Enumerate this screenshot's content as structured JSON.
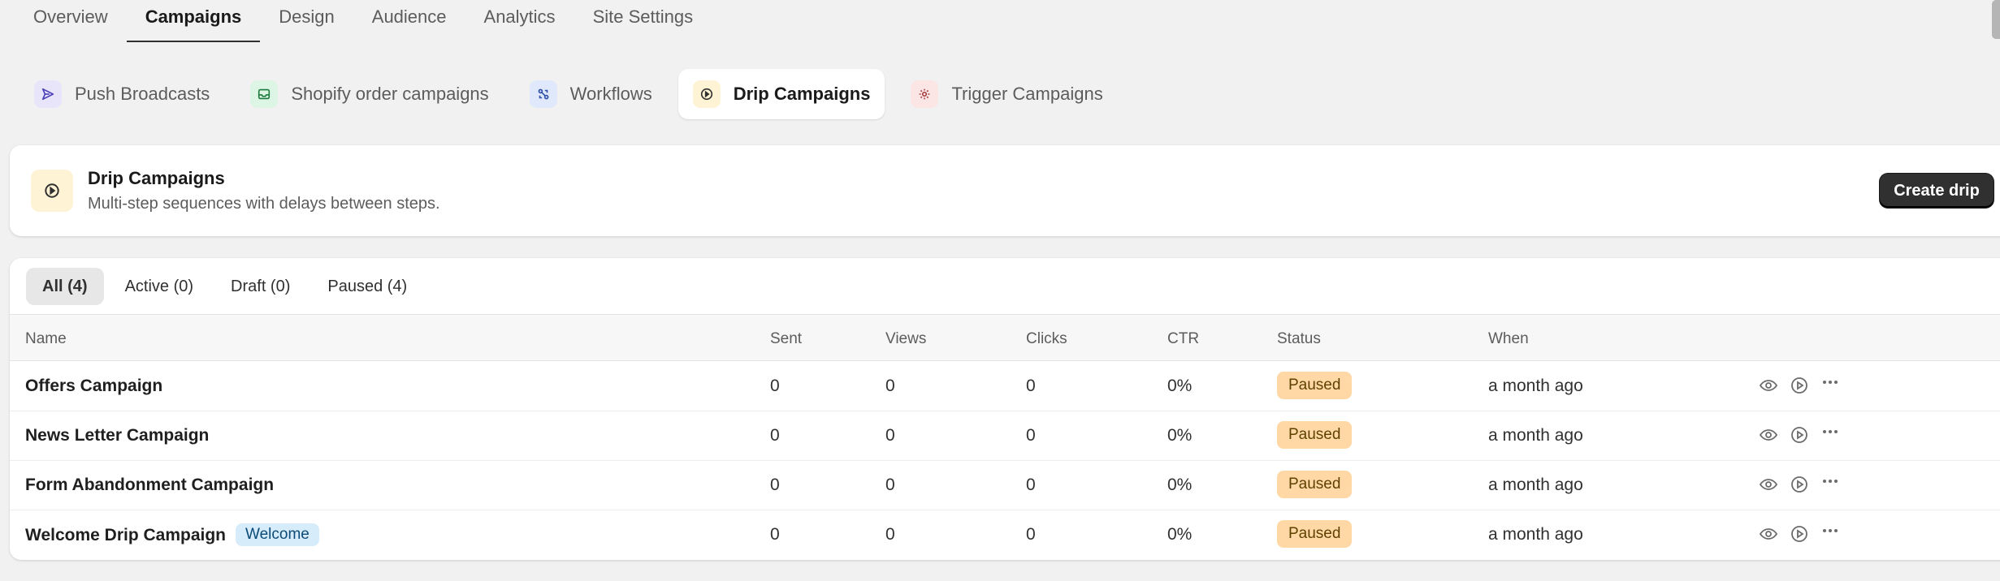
{
  "top_nav": {
    "tabs": [
      {
        "label": "Overview"
      },
      {
        "label": "Campaigns",
        "active": true
      },
      {
        "label": "Design"
      },
      {
        "label": "Audience"
      },
      {
        "label": "Analytics"
      },
      {
        "label": "Site Settings"
      }
    ]
  },
  "sub_tabs": [
    {
      "label": "Push Broadcasts",
      "icon": "send-icon",
      "icon_bg": "#e8e5fb",
      "icon_color": "#4a3fb5"
    },
    {
      "label": "Shopify order campaigns",
      "icon": "inbox-icon",
      "icon_bg": "#dcf5e4",
      "icon_color": "#1d7a3e"
    },
    {
      "label": "Workflows",
      "icon": "workflow-icon",
      "icon_bg": "#e0e8fb",
      "icon_color": "#2d4fa8"
    },
    {
      "label": "Drip Campaigns",
      "icon": "play-circle-icon",
      "icon_bg": "#fff3d6",
      "icon_color": "#303030",
      "active": true
    },
    {
      "label": "Trigger Campaigns",
      "icon": "gear-icon",
      "icon_bg": "#fbe5e5",
      "icon_color": "#a33a3a"
    }
  ],
  "header": {
    "title": "Drip Campaigns",
    "subtitle": "Multi-step sequences with delays between steps.",
    "create_label": "Create drip"
  },
  "filters": [
    {
      "label": "All (4)",
      "active": true
    },
    {
      "label": "Active (0)"
    },
    {
      "label": "Draft (0)"
    },
    {
      "label": "Paused (4)"
    }
  ],
  "table": {
    "columns": [
      "Name",
      "Sent",
      "Views",
      "Clicks",
      "CTR",
      "Status",
      "When"
    ],
    "rows": [
      {
        "name": "Offers Campaign",
        "tag": "",
        "sent": "0",
        "views": "0",
        "clicks": "0",
        "ctr": "0%",
        "status": "Paused",
        "when": "a month ago"
      },
      {
        "name": "News Letter Campaign",
        "tag": "",
        "sent": "0",
        "views": "0",
        "clicks": "0",
        "ctr": "0%",
        "status": "Paused",
        "when": "a month ago"
      },
      {
        "name": "Form Abandonment Campaign",
        "tag": "",
        "sent": "0",
        "views": "0",
        "clicks": "0",
        "ctr": "0%",
        "status": "Paused",
        "when": "a month ago"
      },
      {
        "name": "Welcome Drip Campaign",
        "tag": "Welcome",
        "sent": "0",
        "views": "0",
        "clicks": "0",
        "ctr": "0%",
        "status": "Paused",
        "when": "a month ago"
      }
    ]
  },
  "colors": {
    "paused_badge": "#ffd8a6",
    "tag_bg": "#d6ecfb",
    "primary_button": "#303030"
  }
}
